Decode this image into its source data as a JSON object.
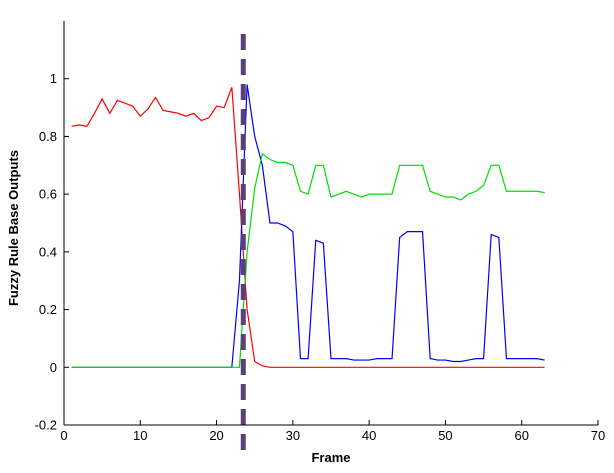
{
  "chart_data": {
    "type": "line",
    "xlabel": "Frame",
    "ylabel": "Fuzzy Rule Base Outputs",
    "xlim": [
      0,
      70
    ],
    "ylim": [
      -0.2,
      1.2
    ],
    "xticks": [
      0,
      10,
      20,
      30,
      40,
      50,
      60,
      70
    ],
    "yticks": [
      -0.2,
      0,
      0.2,
      0.4,
      0.6,
      0.8,
      1
    ],
    "grid": false,
    "legend": "none",
    "series": [
      {
        "color": "#ff0000",
        "x": [
          1,
          2,
          3,
          4,
          5,
          6,
          7,
          8,
          9,
          10,
          11,
          12,
          13,
          14,
          15,
          16,
          17,
          18,
          19,
          20,
          21,
          22,
          23,
          24,
          25,
          26,
          27,
          28,
          29,
          30,
          31,
          32,
          33,
          34,
          35,
          36,
          37,
          38,
          39,
          40,
          41,
          42,
          43,
          44,
          45,
          46,
          47,
          48,
          49,
          50,
          51,
          52,
          53,
          54,
          55,
          56,
          57,
          58,
          59,
          60,
          61,
          62,
          63
        ],
        "y": [
          0.835,
          0.84,
          0.835,
          0.88,
          0.93,
          0.88,
          0.925,
          0.915,
          0.905,
          0.87,
          0.895,
          0.935,
          0.89,
          0.885,
          0.88,
          0.87,
          0.88,
          0.855,
          0.865,
          0.905,
          0.9,
          0.97,
          0.6,
          0.2,
          0.02,
          0.005,
          0,
          0,
          0,
          0,
          0,
          0,
          0,
          0,
          0,
          0,
          0,
          0,
          0,
          0,
          0,
          0,
          0,
          0,
          0,
          0,
          0,
          0,
          0,
          0,
          0,
          0,
          0,
          0,
          0,
          0,
          0,
          0,
          0,
          0,
          0,
          0,
          0
        ]
      },
      {
        "color": "#0000ff",
        "x": [
          1,
          2,
          3,
          4,
          5,
          6,
          7,
          8,
          9,
          10,
          11,
          12,
          13,
          14,
          15,
          16,
          17,
          18,
          19,
          20,
          21,
          22,
          23,
          24,
          25,
          26,
          27,
          28,
          29,
          30,
          31,
          32,
          33,
          34,
          35,
          36,
          37,
          38,
          39,
          40,
          41,
          42,
          43,
          44,
          45,
          46,
          47,
          48,
          49,
          50,
          51,
          52,
          53,
          54,
          55,
          56,
          57,
          58,
          59,
          60,
          61,
          62,
          63
        ],
        "y": [
          0,
          0,
          0,
          0,
          0,
          0,
          0,
          0,
          0,
          0,
          0,
          0,
          0,
          0,
          0,
          0,
          0,
          0,
          0,
          0,
          0,
          0,
          0.3,
          0.98,
          0.8,
          0.7,
          0.5,
          0.5,
          0.49,
          0.47,
          0.03,
          0.03,
          0.44,
          0.43,
          0.03,
          0.03,
          0.03,
          0.025,
          0.025,
          0.025,
          0.03,
          0.03,
          0.03,
          0.45,
          0.47,
          0.47,
          0.47,
          0.03,
          0.025,
          0.025,
          0.02,
          0.02,
          0.025,
          0.03,
          0.03,
          0.46,
          0.45,
          0.03,
          0.03,
          0.03,
          0.03,
          0.03,
          0.025
        ]
      },
      {
        "color": "#00dd00",
        "x": [
          1,
          2,
          3,
          4,
          5,
          6,
          7,
          8,
          9,
          10,
          11,
          12,
          13,
          14,
          15,
          16,
          17,
          18,
          19,
          20,
          21,
          22,
          23,
          24,
          25,
          26,
          27,
          28,
          29,
          30,
          31,
          32,
          33,
          34,
          35,
          36,
          37,
          38,
          39,
          40,
          41,
          42,
          43,
          44,
          45,
          46,
          47,
          48,
          49,
          50,
          51,
          52,
          53,
          54,
          55,
          56,
          57,
          58,
          59,
          60,
          61,
          62,
          63
        ],
        "y": [
          0,
          0,
          0,
          0,
          0,
          0,
          0,
          0,
          0,
          0,
          0,
          0,
          0,
          0,
          0,
          0,
          0,
          0,
          0,
          0,
          0,
          0,
          0,
          0.4,
          0.62,
          0.74,
          0.72,
          0.71,
          0.71,
          0.7,
          0.61,
          0.6,
          0.7,
          0.7,
          0.59,
          0.6,
          0.61,
          0.6,
          0.59,
          0.6,
          0.6,
          0.6,
          0.6,
          0.7,
          0.7,
          0.7,
          0.7,
          0.61,
          0.6,
          0.59,
          0.59,
          0.58,
          0.6,
          0.61,
          0.63,
          0.7,
          0.7,
          0.61,
          0.61,
          0.61,
          0.61,
          0.61,
          0.605
        ]
      }
    ],
    "marker_line": {
      "x": 23.5,
      "style": "dashed",
      "color": "#5a3f78"
    }
  }
}
